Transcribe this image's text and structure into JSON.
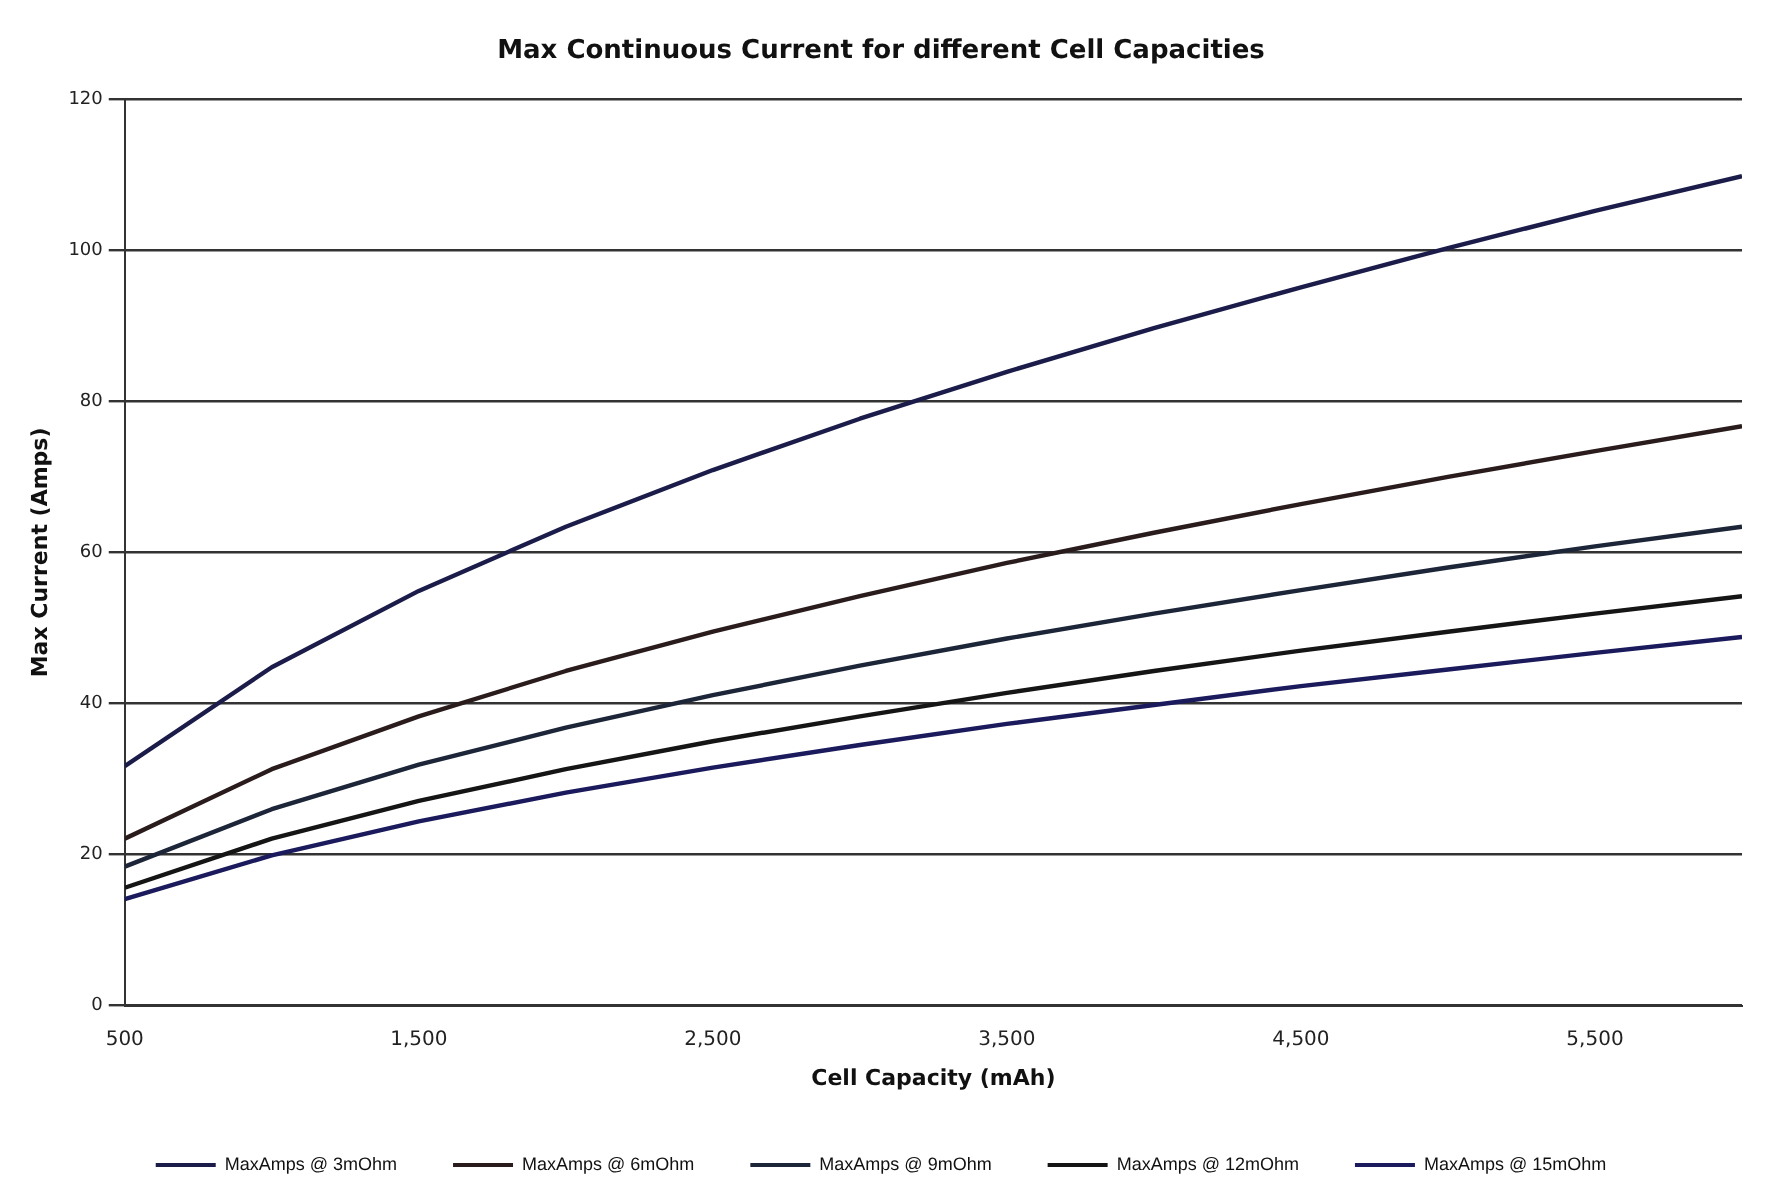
{
  "chart_data": {
    "type": "line",
    "title": "Max Continuous Current for different Cell Capacities",
    "xlabel": "Cell Capacity (mAh)",
    "ylabel": "Max Current (Amps)",
    "x": [
      500,
      1000,
      1500,
      2000,
      2500,
      3000,
      3500,
      4000,
      4500,
      5000,
      5500,
      6000
    ],
    "series": [
      {
        "name": "MaxAmps @ 3mOhm",
        "color": "#1c1c4a",
        "values": [
          31.7,
          44.8,
          54.9,
          63.4,
          70.9,
          77.7,
          83.9,
          89.7,
          95.1,
          100.3,
          105.2,
          109.8
        ]
      },
      {
        "name": "MaxAmps @ 6mOhm",
        "color": "#2a1c1c",
        "values": [
          22.1,
          31.3,
          38.3,
          44.3,
          49.5,
          54.2,
          58.6,
          62.6,
          66.4,
          70.0,
          73.4,
          76.7
        ]
      },
      {
        "name": "MaxAmps @ 9mOhm",
        "color": "#1c2638",
        "values": [
          18.4,
          26.0,
          31.9,
          36.8,
          41.1,
          45.0,
          48.6,
          51.9,
          55.0,
          58.0,
          60.8,
          63.4
        ]
      },
      {
        "name": "MaxAmps @ 12mOhm",
        "color": "#151515",
        "values": [
          15.6,
          22.1,
          27.1,
          31.3,
          35.0,
          38.3,
          41.4,
          44.3,
          47.0,
          49.5,
          51.9,
          54.2
        ]
      },
      {
        "name": "MaxAmps @ 15mOhm",
        "color": "#1a1a5c",
        "values": [
          14.1,
          19.9,
          24.4,
          28.2,
          31.5,
          34.5,
          37.3,
          39.8,
          42.3,
          44.5,
          46.7,
          48.8
        ]
      }
    ],
    "xlim": [
      500,
      6000
    ],
    "xticks": [
      {
        "value": 500,
        "label": "500"
      },
      {
        "value": 1500,
        "label": "1,500"
      },
      {
        "value": 2500,
        "label": "2,500"
      },
      {
        "value": 3500,
        "label": "3,500"
      },
      {
        "value": 4500,
        "label": "4,500"
      },
      {
        "value": 5500,
        "label": "5,500"
      }
    ],
    "ylim": [
      0,
      120
    ],
    "yticks": [
      0,
      20,
      40,
      60,
      80,
      100,
      120
    ],
    "grid": "y",
    "legend": "bottom",
    "marker": "none",
    "line_style": "solid"
  }
}
